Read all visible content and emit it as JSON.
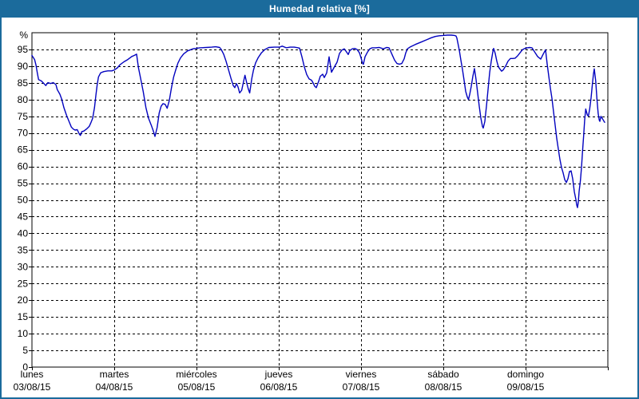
{
  "window": {
    "title": "Humedad relativa [%]",
    "title_bar_color": "#1b6b9c",
    "border_color": "#1b6b9c"
  },
  "chart_data": {
    "type": "line",
    "title": "Humedad relativa [%]",
    "xlabel": "",
    "ylabel": "%",
    "ylim": [
      0,
      100.5
    ],
    "y_ticks": [
      95,
      90,
      85,
      80,
      75,
      70,
      65,
      60,
      55,
      50,
      45,
      40,
      35,
      30,
      25,
      20,
      15,
      10,
      5,
      0
    ],
    "grid": "dashed",
    "grid_color": "#000000",
    "line_color": "#0202bf",
    "legend": "none",
    "x_axis": {
      "days": [
        {
          "name": "lunes",
          "date": "03/08/15"
        },
        {
          "name": "martes",
          "date": "04/08/15"
        },
        {
          "name": "miércoles",
          "date": "05/08/15"
        },
        {
          "name": "jueves",
          "date": "06/08/15"
        },
        {
          "name": "viernes",
          "date": "07/08/15"
        },
        {
          "name": "sábado",
          "date": "08/08/15"
        },
        {
          "name": "domingo",
          "date": "09/08/15"
        }
      ]
    },
    "series": [
      {
        "name": "Humedad relativa",
        "unit": "%",
        "points_day_value": [
          [
            0.0,
            93.2
          ],
          [
            0.032,
            92.0
          ],
          [
            0.049,
            90.4
          ],
          [
            0.065,
            88.0
          ],
          [
            0.081,
            86.0
          ],
          [
            0.114,
            85.6
          ],
          [
            0.146,
            84.8
          ],
          [
            0.168,
            84.2
          ],
          [
            0.194,
            85.1
          ],
          [
            0.226,
            84.8
          ],
          [
            0.259,
            85.1
          ],
          [
            0.291,
            84.5
          ],
          [
            0.308,
            83.0
          ],
          [
            0.34,
            81.6
          ],
          [
            0.362,
            80.1
          ],
          [
            0.388,
            77.6
          ],
          [
            0.42,
            75.3
          ],
          [
            0.453,
            73.3
          ],
          [
            0.479,
            71.8
          ],
          [
            0.502,
            71.2
          ],
          [
            0.524,
            70.9
          ],
          [
            0.55,
            71.0
          ],
          [
            0.576,
            69.7
          ],
          [
            0.589,
            69.3
          ],
          [
            0.605,
            70.4
          ],
          [
            0.631,
            70.6
          ],
          [
            0.663,
            71.2
          ],
          [
            0.696,
            72.0
          ],
          [
            0.718,
            73.2
          ],
          [
            0.738,
            74.4
          ],
          [
            0.76,
            77.6
          ],
          [
            0.777,
            81.2
          ],
          [
            0.793,
            84.5
          ],
          [
            0.809,
            86.8
          ],
          [
            0.835,
            88.0
          ],
          [
            0.874,
            88.4
          ],
          [
            0.922,
            88.6
          ],
          [
            0.971,
            88.6
          ],
          [
            1.003,
            88.9
          ],
          [
            1.039,
            89.5
          ],
          [
            1.068,
            90.4
          ],
          [
            1.117,
            91.3
          ],
          [
            1.165,
            92.0
          ],
          [
            1.214,
            92.9
          ],
          [
            1.243,
            93.2
          ],
          [
            1.272,
            93.6
          ],
          [
            1.294,
            89.6
          ],
          [
            1.32,
            86.4
          ],
          [
            1.352,
            82.4
          ],
          [
            1.385,
            77.6
          ],
          [
            1.417,
            74.4
          ],
          [
            1.45,
            72.4
          ],
          [
            1.473,
            70.8
          ],
          [
            1.495,
            69.0
          ],
          [
            1.521,
            71.6
          ],
          [
            1.547,
            76.0
          ],
          [
            1.57,
            78.0
          ],
          [
            1.592,
            78.8
          ],
          [
            1.618,
            78.6
          ],
          [
            1.644,
            77.4
          ],
          [
            1.67,
            79.8
          ],
          [
            1.696,
            83.6
          ],
          [
            1.722,
            86.8
          ],
          [
            1.748,
            88.9
          ],
          [
            1.774,
            90.9
          ],
          [
            1.806,
            92.5
          ],
          [
            1.845,
            93.7
          ],
          [
            1.893,
            94.6
          ],
          [
            1.958,
            95.2
          ],
          [
            2.039,
            95.5
          ],
          [
            2.117,
            95.6
          ],
          [
            2.184,
            95.7
          ],
          [
            2.233,
            95.8
          ],
          [
            2.282,
            95.6
          ],
          [
            2.301,
            95.0
          ],
          [
            2.33,
            93.6
          ],
          [
            2.359,
            91.5
          ],
          [
            2.388,
            89.0
          ],
          [
            2.417,
            86.5
          ],
          [
            2.447,
            84.2
          ],
          [
            2.466,
            83.6
          ],
          [
            2.485,
            84.8
          ],
          [
            2.505,
            83.8
          ],
          [
            2.524,
            82.0
          ],
          [
            2.55,
            82.8
          ],
          [
            2.57,
            85.2
          ],
          [
            2.589,
            87.3
          ],
          [
            2.609,
            85.2
          ],
          [
            2.628,
            83.3
          ],
          [
            2.647,
            82.0
          ],
          [
            2.673,
            86.4
          ],
          [
            2.692,
            88.8
          ],
          [
            2.718,
            91.0
          ],
          [
            2.75,
            92.6
          ],
          [
            2.789,
            94.0
          ],
          [
            2.832,
            95.0
          ],
          [
            2.88,
            95.6
          ],
          [
            2.945,
            95.7
          ],
          [
            3.01,
            95.7
          ],
          [
            3.042,
            96.0
          ],
          [
            3.091,
            95.5
          ],
          [
            3.139,
            95.7
          ],
          [
            3.188,
            95.7
          ],
          [
            3.236,
            95.5
          ],
          [
            3.252,
            95.4
          ],
          [
            3.282,
            92.8
          ],
          [
            3.311,
            89.8
          ],
          [
            3.34,
            87.5
          ],
          [
            3.369,
            86.2
          ],
          [
            3.398,
            85.8
          ],
          [
            3.417,
            85.0
          ],
          [
            3.437,
            84.0
          ],
          [
            3.456,
            83.6
          ],
          [
            3.485,
            85.5
          ],
          [
            3.505,
            87.0
          ],
          [
            3.534,
            87.6
          ],
          [
            3.553,
            86.6
          ],
          [
            3.583,
            88.0
          ],
          [
            3.612,
            92.8
          ],
          [
            3.641,
            88.2
          ],
          [
            3.67,
            89.5
          ],
          [
            3.709,
            91.2
          ],
          [
            3.738,
            93.8
          ],
          [
            3.767,
            94.8
          ],
          [
            3.796,
            95.2
          ],
          [
            3.825,
            94.2
          ],
          [
            3.845,
            93.5
          ],
          [
            3.864,
            94.7
          ],
          [
            3.893,
            95.2
          ],
          [
            3.922,
            95.3
          ],
          [
            3.951,
            95.0
          ],
          [
            3.981,
            94.0
          ],
          [
            4.0,
            92.5
          ],
          [
            4.019,
            90.8
          ],
          [
            4.029,
            90.6
          ],
          [
            4.049,
            92.8
          ],
          [
            4.078,
            94.2
          ],
          [
            4.107,
            95.2
          ],
          [
            4.136,
            95.5
          ],
          [
            4.175,
            95.5
          ],
          [
            4.223,
            95.6
          ],
          [
            4.272,
            95.2
          ],
          [
            4.311,
            95.6
          ],
          [
            4.34,
            95.5
          ],
          [
            4.359,
            94.5
          ],
          [
            4.379,
            93.4
          ],
          [
            4.408,
            91.8
          ],
          [
            4.437,
            90.8
          ],
          [
            4.466,
            90.6
          ],
          [
            4.495,
            90.8
          ],
          [
            4.524,
            92.2
          ],
          [
            4.544,
            94.0
          ],
          [
            4.563,
            95.2
          ],
          [
            4.602,
            95.8
          ],
          [
            4.66,
            96.5
          ],
          [
            4.728,
            97.2
          ],
          [
            4.796,
            97.9
          ],
          [
            4.854,
            98.5
          ],
          [
            4.903,
            98.9
          ],
          [
            4.951,
            99.1
          ],
          [
            5.0,
            99.2
          ],
          [
            5.049,
            99.3
          ],
          [
            5.097,
            99.3
          ],
          [
            5.136,
            99.2
          ],
          [
            5.155,
            99.0
          ],
          [
            5.165,
            98.4
          ],
          [
            5.175,
            97.2
          ],
          [
            5.194,
            94.8
          ],
          [
            5.214,
            91.8
          ],
          [
            5.233,
            89.0
          ],
          [
            5.252,
            85.8
          ],
          [
            5.272,
            82.5
          ],
          [
            5.291,
            80.8
          ],
          [
            5.306,
            80.0
          ],
          [
            5.32,
            81.5
          ],
          [
            5.34,
            84.0
          ],
          [
            5.359,
            87.0
          ],
          [
            5.379,
            89.3
          ],
          [
            5.398,
            86.0
          ],
          [
            5.417,
            82.0
          ],
          [
            5.437,
            78.0
          ],
          [
            5.456,
            74.5
          ],
          [
            5.476,
            72.0
          ],
          [
            5.485,
            71.5
          ],
          [
            5.505,
            73.5
          ],
          [
            5.524,
            78.0
          ],
          [
            5.544,
            83.0
          ],
          [
            5.563,
            88.0
          ],
          [
            5.583,
            91.5
          ],
          [
            5.602,
            94.3
          ],
          [
            5.612,
            95.3
          ],
          [
            5.631,
            93.8
          ],
          [
            5.65,
            91.5
          ],
          [
            5.67,
            89.8
          ],
          [
            5.689,
            89.1
          ],
          [
            5.709,
            88.5
          ],
          [
            5.728,
            88.9
          ],
          [
            5.757,
            90.0
          ],
          [
            5.786,
            91.5
          ],
          [
            5.816,
            92.3
          ],
          [
            5.845,
            92.3
          ],
          [
            5.874,
            92.4
          ],
          [
            5.903,
            93.1
          ],
          [
            5.932,
            94.0
          ],
          [
            5.961,
            94.9
          ],
          [
            5.99,
            95.3
          ],
          [
            6.019,
            95.5
          ],
          [
            6.049,
            95.6
          ],
          [
            6.078,
            95.5
          ],
          [
            6.117,
            94.0
          ],
          [
            6.146,
            92.9
          ],
          [
            6.184,
            92.1
          ],
          [
            6.214,
            93.6
          ],
          [
            6.243,
            94.9
          ],
          [
            6.262,
            90.7
          ],
          [
            6.282,
            87.1
          ],
          [
            6.301,
            83.5
          ],
          [
            6.32,
            80.4
          ],
          [
            6.34,
            76.4
          ],
          [
            6.359,
            72.4
          ],
          [
            6.379,
            68.4
          ],
          [
            6.398,
            65.2
          ],
          [
            6.417,
            62.1
          ],
          [
            6.437,
            59.7
          ],
          [
            6.456,
            58.1
          ],
          [
            6.476,
            56.1
          ],
          [
            6.495,
            55.2
          ],
          [
            6.515,
            56.3
          ],
          [
            6.534,
            58.5
          ],
          [
            6.553,
            58.7
          ],
          [
            6.573,
            56.3
          ],
          [
            6.592,
            52.5
          ],
          [
            6.612,
            50.1
          ],
          [
            6.621,
            48.5
          ],
          [
            6.631,
            47.7
          ],
          [
            6.641,
            49.3
          ],
          [
            6.65,
            52.5
          ],
          [
            6.667,
            55.9
          ],
          [
            6.68,
            59.7
          ],
          [
            6.692,
            64.5
          ],
          [
            6.706,
            69.2
          ],
          [
            6.718,
            74.0
          ],
          [
            6.731,
            77.2
          ],
          [
            6.75,
            75.4
          ],
          [
            6.764,
            75.1
          ],
          [
            6.78,
            77.3
          ],
          [
            6.796,
            80.5
          ],
          [
            6.812,
            84.5
          ],
          [
            6.825,
            87.7
          ],
          [
            6.835,
            89.2
          ],
          [
            6.852,
            85.6
          ],
          [
            6.867,
            80.3
          ],
          [
            6.883,
            75.8
          ],
          [
            6.896,
            73.8
          ],
          [
            6.903,
            73.5
          ],
          [
            6.916,
            75.0
          ],
          [
            6.932,
            74.4
          ],
          [
            6.951,
            73.6
          ],
          [
            6.961,
            73.2
          ]
        ]
      }
    ]
  }
}
